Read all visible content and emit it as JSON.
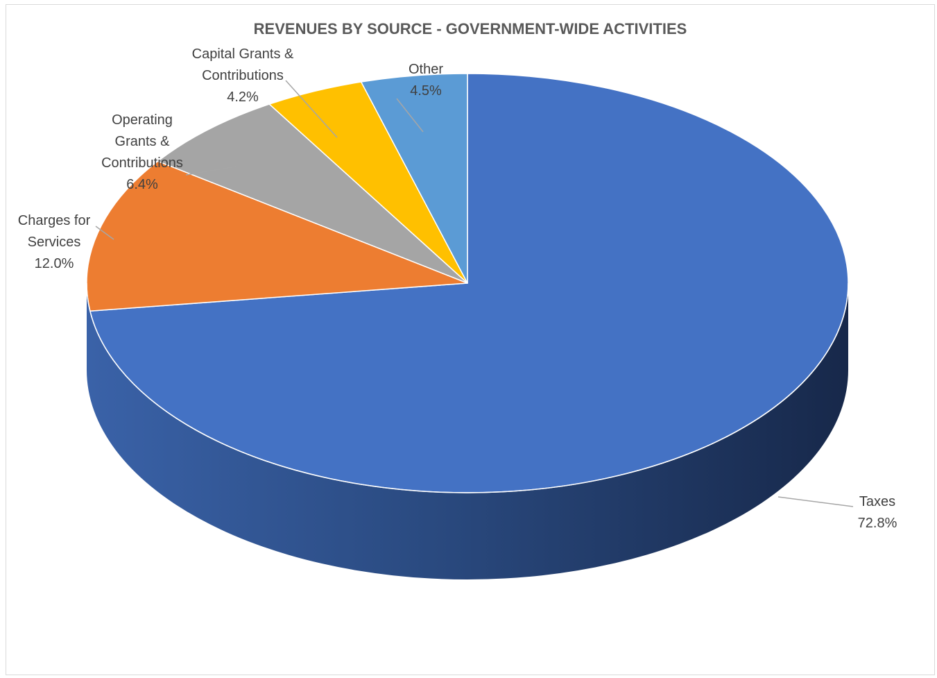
{
  "chart_data": {
    "type": "pie",
    "title": "REVENUES BY SOURCE - GOVERNMENT-WIDE ACTIVITIES",
    "slices": [
      {
        "name": "Taxes",
        "value": 72.8,
        "label": "72.8%",
        "color": "#4472C4"
      },
      {
        "name": "Charges for Services",
        "value": 12.0,
        "label": "12.0%",
        "color": "#ED7D31"
      },
      {
        "name": "Operating Grants & Contributions",
        "value": 6.4,
        "label": "6.4%",
        "color": "#A5A5A5"
      },
      {
        "name": "Capital Grants & Contributions",
        "value": 4.2,
        "label": "4.2%",
        "color": "#FFC000"
      },
      {
        "name": "Other",
        "value": 4.5,
        "label": "4.5%",
        "color": "#5B9BD5"
      }
    ],
    "legend": "none",
    "data_labels": "outside with leader lines"
  },
  "labels": {
    "taxes": {
      "l1": "Taxes",
      "pct": "72.8%"
    },
    "charges": {
      "l1": "Charges for",
      "l2": "Services",
      "pct": "12.0%"
    },
    "operating": {
      "l1": "Operating",
      "l2": "Grants &",
      "l3": "Contributions",
      "pct": "6.4%"
    },
    "capital": {
      "l1": "Capital Grants &",
      "l2": "Contributions",
      "pct": "4.2%"
    },
    "other": {
      "l1": "Other",
      "pct": "4.5%"
    }
  }
}
